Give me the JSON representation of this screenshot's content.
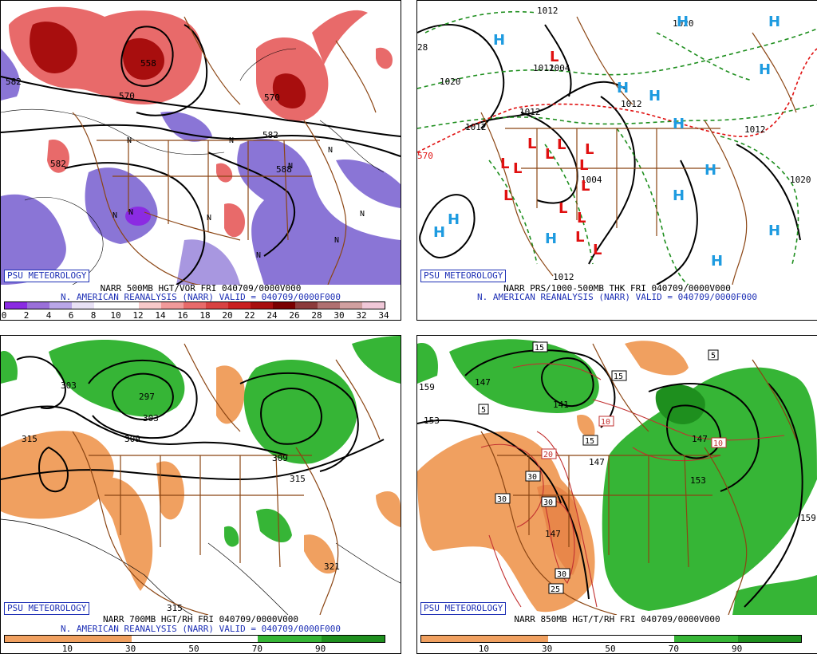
{
  "panels": [
    {
      "id": "p500",
      "badge": "PSU METEOROLOGY",
      "title_line1": "NARR 500MB HGT/VOR FRI 040709/0000V000",
      "title_line2": "N. AMERICAN REANALYSIS (NARR) VALID = 040709/0000F000",
      "contour_labels": [
        "582",
        "570",
        "558",
        "570",
        "582",
        "582",
        "588"
      ],
      "symbols": [
        "N",
        "N",
        "N",
        "N",
        "N",
        "N",
        "N",
        "N",
        "N",
        "N"
      ],
      "colorbar": {
        "colors": [
          "#8a2be2",
          "#9a6fd9",
          "#b9a6e8",
          "#e8e1f5",
          "#ffffff",
          "#ffffff",
          "#f7c9c9",
          "#f19a9a",
          "#e86a6a",
          "#d84242",
          "#c92020",
          "#a80e0e",
          "#7a0000",
          "#8c3b3b",
          "#b07070",
          "#d0a0a0",
          "#f0c8d8"
        ],
        "ticks": [
          "0",
          "2",
          "4",
          "6",
          "8",
          "10",
          "12",
          "14",
          "16",
          "18",
          "20",
          "22",
          "24",
          "26",
          "28",
          "30",
          "32",
          "34"
        ]
      }
    },
    {
      "id": "pthk",
      "badge": "PSU METEOROLOGY",
      "title_line1": "NARR PRS/1000-500MB THK FRI 040709/0000V000",
      "title_line2": "N. AMERICAN REANALYSIS (NARR) VALID = 040709/0000F000",
      "contour_labels": [
        "1012",
        "1020",
        "1020",
        "1012",
        "1004",
        "1012",
        "1012",
        "1012",
        "1004",
        "1012",
        "1020",
        "1012",
        "28",
        "570"
      ],
      "highs": [
        "H",
        "H",
        "H",
        "H",
        "H",
        "H",
        "H",
        "H",
        "H",
        "H",
        "H",
        "H",
        "H",
        "H"
      ],
      "lows": [
        "L",
        "L",
        "L",
        "L",
        "L",
        "L",
        "L",
        "L",
        "L",
        "L",
        "L",
        "L",
        "L",
        "L"
      ],
      "high_color": "#1e9be0",
      "low_color": "#e01010"
    },
    {
      "id": "p700",
      "badge": "PSU METEOROLOGY",
      "title_line1": "NARR 700MB HGT/RH FRI 040709/0000V000",
      "title_line2": "N. AMERICAN REANALYSIS (NARR) VALID = 040709/0000F000",
      "contour_labels": [
        "303",
        "297",
        "303",
        "309",
        "315",
        "309",
        "315",
        "321",
        "315"
      ],
      "colorbar": {
        "colors": [
          "#f0a060",
          "#f0a060",
          "#ffffff",
          "#ffffff",
          "#36b536",
          "#1e8f1e"
        ],
        "ticks": [
          "10",
          "30",
          "50",
          "70",
          "90"
        ]
      }
    },
    {
      "id": "p850",
      "badge": "PSU METEOROLOGY",
      "title_line1": "NARR 850MB HGT/T/RH FRI 040709/0000V000",
      "title_line2": "",
      "contour_labels": [
        "159",
        "153",
        "147",
        "147",
        "147",
        "153",
        "159",
        "147",
        "141"
      ],
      "temp_labels": [
        "5",
        "15",
        "5",
        "15",
        "10",
        "10",
        "20",
        "30",
        "30",
        "30",
        "30",
        "25",
        "15"
      ],
      "colorbar": {
        "colors": [
          "#f0a060",
          "#f0a060",
          "#ffffff",
          "#ffffff",
          "#36b536",
          "#1e8f1e"
        ],
        "ticks": [
          "10",
          "30",
          "50",
          "70",
          "90"
        ]
      }
    }
  ]
}
